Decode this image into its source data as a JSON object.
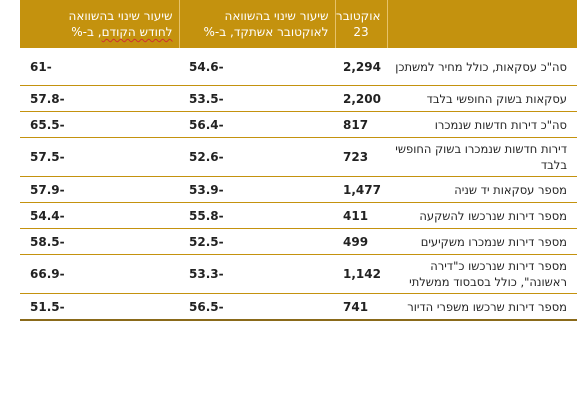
{
  "table": {
    "headers": {
      "metric": "",
      "oct": "אוקטובר 23",
      "yoy": "שיעור שינוי בהשוואה לאוקטובר אשתקד, ב-%",
      "mom_part1": "שיעור שינוי בהשוואה",
      "mom_part2_underlined": "לחודש הקודם",
      "mom_part3": ", ב-%"
    },
    "rows": [
      {
        "metric": "סה\"כ עסקאות, כולל מחיר למשתכן",
        "oct": "2,294",
        "yoy": "-54.6",
        "mom": "-61"
      },
      {
        "metric": "עסקאות בשוק החופשי בלבד",
        "oct": "2,200",
        "yoy": "-53.5",
        "mom": "-57.8"
      },
      {
        "metric": "סה\"כ דירות חדשות שנמכרו",
        "oct": "817",
        "yoy": "-56.4",
        "mom": "-65.5"
      },
      {
        "metric": "דירות חדשות שנמכרו בשוק החופשי בלבד",
        "oct": "723",
        "yoy": "-52.6",
        "mom": "-57.5"
      },
      {
        "metric": "מספר עסקאות יד שניה",
        "oct": "1,477",
        "yoy": "-53.9",
        "mom": "-57.9"
      },
      {
        "metric": "מספר דירות שנרכשו להשקעה",
        "oct": "411",
        "yoy": "-55.8",
        "mom": "-54.4"
      },
      {
        "metric": "מספר דירות שנמכרו משקיעים",
        "oct": "499",
        "yoy": "-52.5",
        "mom": "-58.5"
      },
      {
        "metric": "מספר דירות שנרכשו כ\"דירה ראשונה\", כולל בסבסוד ממשלתי",
        "oct": "1,142",
        "yoy": "-53.3",
        "mom": "-66.9"
      },
      {
        "metric": "מספר דירות שרכשו משפרי הדיור",
        "oct": "741",
        "yoy": "-56.5",
        "mom": "-51.5"
      }
    ]
  }
}
